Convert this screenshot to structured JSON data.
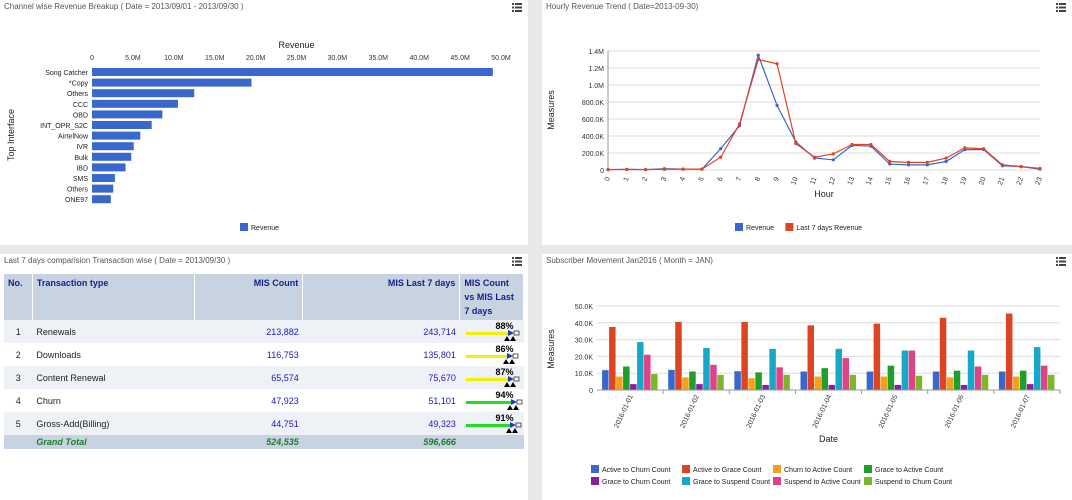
{
  "panels": {
    "channel": {
      "title": "Channel wise Revenue Breakup ( Date = 2013/09/01 - 2013/09/30 )"
    },
    "hourly": {
      "title": "Hourly Revenue Trend ( Date=2013-09-30)"
    },
    "transactions": {
      "title": "Last 7 days comparision Transaction wise ( Date = 2013/09/30 )"
    },
    "subscriber": {
      "title": "Subscriber Movement Jan2016 ( Month = JAN)"
    }
  },
  "menu_icon": "hamburger-menu-icon",
  "table": {
    "headers": {
      "no": "No.",
      "type": "Transaction type",
      "mis": "MIS Count",
      "last7": "MIS Last 7 days",
      "vs": "MIS Count vs MIS Last 7 days"
    },
    "rows": [
      {
        "no": "1",
        "type": "Renewals",
        "mis": "213,882",
        "last7": "243,714",
        "pct": "88%",
        "bar_color": "#f0f000"
      },
      {
        "no": "2",
        "type": "Downloads",
        "mis": "116,753",
        "last7": "135,801",
        "pct": "86%",
        "bar_color": "#f0f000"
      },
      {
        "no": "3",
        "type": "Content Renewal",
        "mis": "65,574",
        "last7": "75,670",
        "pct": "87%",
        "bar_color": "#f0f000"
      },
      {
        "no": "4",
        "type": "Churn",
        "mis": "47,923",
        "last7": "51,101",
        "pct": "94%",
        "bar_color": "#22dd22"
      },
      {
        "no": "5",
        "type": "Gross-Add(Billing)",
        "mis": "44,751",
        "last7": "49,323",
        "pct": "91%",
        "bar_color": "#22dd22"
      }
    ],
    "total": {
      "label": "Grand Total",
      "mis": "524,535",
      "last7": "596,666"
    }
  },
  "chart_data": [
    {
      "type": "bar",
      "orientation": "horizontal",
      "title": "Revenue",
      "ylabel": "Top Interface",
      "xlim": [
        0,
        50000000
      ],
      "x_ticks": [
        "0",
        "5.0M",
        "10.0M",
        "15.0M",
        "20.0M",
        "25.0M",
        "30.0M",
        "35.0M",
        "40.0M",
        "45.0M",
        "50.0M"
      ],
      "categories": [
        "Song Catcher",
        "*Copy",
        "Others",
        "CCC",
        "OBD",
        "INT_OPR_S2C",
        "AirtelNow",
        "IVR",
        "Bulk",
        "IBD",
        "SMS",
        "Others",
        "ONE97"
      ],
      "values": [
        49000000,
        19500000,
        12500000,
        10500000,
        8600000,
        7300000,
        5900000,
        5100000,
        4800000,
        4100000,
        2800000,
        2600000,
        2300000
      ],
      "legend": [
        "Revenue"
      ],
      "color": "#3a67cc"
    },
    {
      "type": "line",
      "xlabel": "Hour",
      "ylabel": "Measures",
      "ylim": [
        0,
        1400000
      ],
      "y_ticks": [
        "0",
        "200.0K",
        "400.0K",
        "600.0K",
        "800.0K",
        "1.0M",
        "1.2M",
        "1.4M"
      ],
      "x": [
        "0",
        "1",
        "2",
        "3",
        "4",
        "5",
        "6",
        "7",
        "8",
        "9",
        "10",
        "11",
        "12",
        "13",
        "14",
        "15",
        "16",
        "17",
        "18",
        "19",
        "20",
        "21",
        "22",
        "23"
      ],
      "series": [
        {
          "name": "Revenue",
          "color": "#3a67cc",
          "values": [
            5000,
            8000,
            5000,
            15000,
            10000,
            10000,
            250000,
            520000,
            1350000,
            760000,
            330000,
            140000,
            120000,
            290000,
            280000,
            70000,
            60000,
            60000,
            100000,
            240000,
            240000,
            50000,
            40000,
            10000
          ]
        },
        {
          "name": "Last 7 days Revenue",
          "color": "#dd4422",
          "values": [
            5000,
            6000,
            5000,
            8000,
            10000,
            10000,
            150000,
            540000,
            1300000,
            1250000,
            310000,
            150000,
            190000,
            300000,
            300000,
            100000,
            90000,
            90000,
            140000,
            260000,
            250000,
            60000,
            40000,
            20000
          ]
        }
      ],
      "legend_position": "bottom"
    },
    {
      "type": "bar",
      "xlabel": "Date",
      "ylabel": "Measures",
      "ylim": [
        0,
        50000
      ],
      "y_ticks": [
        "0",
        "10.0K",
        "20.0K",
        "30.0K",
        "40.0K",
        "50.0K"
      ],
      "categories": [
        "2016-01-01",
        "2016-01-02",
        "2016-01-03",
        "2016-01-04",
        "2016-01-05",
        "2016-01-06",
        "2016-01-07"
      ],
      "series": [
        {
          "name": "Active to Churn Count",
          "color": "#3a67cc",
          "values": [
            11800,
            12000,
            11200,
            11000,
            11000,
            11000,
            11000
          ]
        },
        {
          "name": "Active to Grace Count",
          "color": "#dd4422",
          "values": [
            37500,
            40500,
            40500,
            38500,
            39500,
            43000,
            45500
          ]
        },
        {
          "name": "Churn to Active Count",
          "color": "#f5a01a",
          "values": [
            8000,
            7500,
            7000,
            8000,
            8000,
            7500,
            8000
          ]
        },
        {
          "name": "Grace to Active Count",
          "color": "#1e9e2a",
          "values": [
            14000,
            11000,
            10500,
            13000,
            14500,
            11500,
            11500
          ]
        },
        {
          "name": "Grace to Churn Count",
          "color": "#8a1e9e",
          "values": [
            3500,
            3500,
            3000,
            3000,
            3000,
            3000,
            3500
          ]
        },
        {
          "name": "Grace to Suspend Count",
          "color": "#15a8c8",
          "values": [
            28500,
            25000,
            24500,
            24500,
            23500,
            23500,
            25500
          ]
        },
        {
          "name": "Suspend to Active Count",
          "color": "#dd4488",
          "values": [
            21000,
            15000,
            13500,
            19000,
            23500,
            14000,
            14500
          ]
        },
        {
          "name": "Suspend to Churn Count",
          "color": "#7ab828",
          "values": [
            9500,
            9000,
            9000,
            9000,
            8500,
            9000,
            9000
          ]
        }
      ],
      "legend_position": "bottom"
    }
  ]
}
